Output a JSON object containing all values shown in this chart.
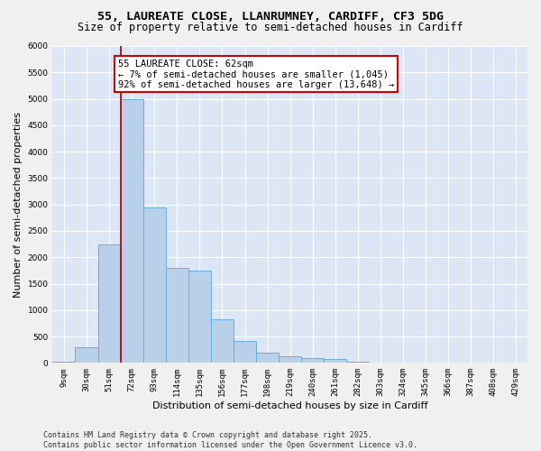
{
  "title_line1": "55, LAUREATE CLOSE, LLANRUMNEY, CARDIFF, CF3 5DG",
  "title_line2": "Size of property relative to semi-detached houses in Cardiff",
  "xlabel": "Distribution of semi-detached houses by size in Cardiff",
  "ylabel": "Number of semi-detached properties",
  "categories": [
    "9sqm",
    "30sqm",
    "51sqm",
    "72sqm",
    "93sqm",
    "114sqm",
    "135sqm",
    "156sqm",
    "177sqm",
    "198sqm",
    "219sqm",
    "240sqm",
    "261sqm",
    "282sqm",
    "303sqm",
    "324sqm",
    "345sqm",
    "366sqm",
    "387sqm",
    "408sqm",
    "429sqm"
  ],
  "values": [
    25,
    300,
    2250,
    5000,
    2950,
    1800,
    1750,
    820,
    420,
    200,
    130,
    95,
    70,
    15,
    10,
    5,
    3,
    2,
    1,
    1,
    1
  ],
  "bar_color": "#b8d0ea",
  "bar_edge_color": "#6aaed6",
  "vline_x_index": 2.5,
  "vline_color": "#cc0000",
  "annotation_text": "55 LAUREATE CLOSE: 62sqm\n← 7% of semi-detached houses are smaller (1,045)\n92% of semi-detached houses are larger (13,648) →",
  "annotation_box_color": "#ffffff",
  "annotation_box_edge": "#cc0000",
  "ylim": [
    0,
    6000
  ],
  "yticks": [
    0,
    500,
    1000,
    1500,
    2000,
    2500,
    3000,
    3500,
    4000,
    4500,
    5000,
    5500,
    6000
  ],
  "bg_color": "#dce6f5",
  "grid_color": "#ffffff",
  "fig_bg_color": "#f0f0f0",
  "footer_line1": "Contains HM Land Registry data © Crown copyright and database right 2025.",
  "footer_line2": "Contains public sector information licensed under the Open Government Licence v3.0.",
  "title_fontsize": 9.5,
  "subtitle_fontsize": 8.5,
  "axis_label_fontsize": 8,
  "tick_fontsize": 6.5,
  "annotation_fontsize": 7.5,
  "footer_fontsize": 6
}
